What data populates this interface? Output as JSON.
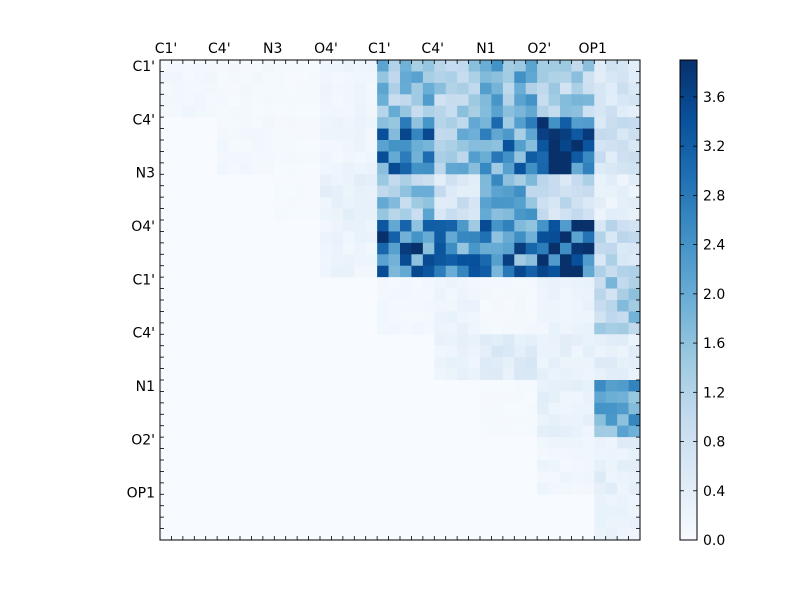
{
  "chart_data": {
    "type": "heatmap",
    "title": "",
    "xlabel": "",
    "ylabel": "",
    "x_tick_labels": [
      "C1'",
      "C4'",
      "N3",
      "O4'",
      "C1'",
      "C4'",
      "N1",
      "O2'",
      "OP1"
    ],
    "y_tick_labels": [
      "C1'",
      "C4'",
      "N3",
      "O4'",
      "C1'",
      "C4'",
      "N1",
      "O2'",
      "OP1"
    ],
    "colormap": "Blues",
    "colorbar": {
      "min": 0.0,
      "max": 3.9,
      "ticks": [
        "0.0",
        "0.4",
        "0.8",
        "1.2",
        "1.6",
        "2.0",
        "2.4",
        "2.8",
        "3.2",
        "3.6"
      ]
    },
    "matrix_size": 42,
    "region_means": [
      [
        0.12,
        0.08,
        0.05,
        0.15,
        1.6,
        1.2,
        1.7,
        1.3,
        0.6
      ],
      [
        0.0,
        0.1,
        0.06,
        0.18,
        2.6,
        1.7,
        2.4,
        3.2,
        0.7
      ],
      [
        0.0,
        0.0,
        0.04,
        0.3,
        1.5,
        0.7,
        1.8,
        0.9,
        0.3
      ],
      [
        0.0,
        0.0,
        0.0,
        0.2,
        2.8,
        2.4,
        2.6,
        3.3,
        0.9
      ],
      [
        0.0,
        0.0,
        0.0,
        0.0,
        0.1,
        0.2,
        0.08,
        0.2,
        1.3
      ],
      [
        0.0,
        0.0,
        0.0,
        0.0,
        0.0,
        0.25,
        0.45,
        0.3,
        0.35
      ],
      [
        0.0,
        0.0,
        0.0,
        0.0,
        0.0,
        0.0,
        0.05,
        0.3,
        1.9
      ],
      [
        0.0,
        0.0,
        0.0,
        0.0,
        0.0,
        0.0,
        0.0,
        0.15,
        0.35
      ],
      [
        0.0,
        0.0,
        0.0,
        0.0,
        0.0,
        0.0,
        0.0,
        0.0,
        0.2
      ]
    ],
    "grid": false
  }
}
